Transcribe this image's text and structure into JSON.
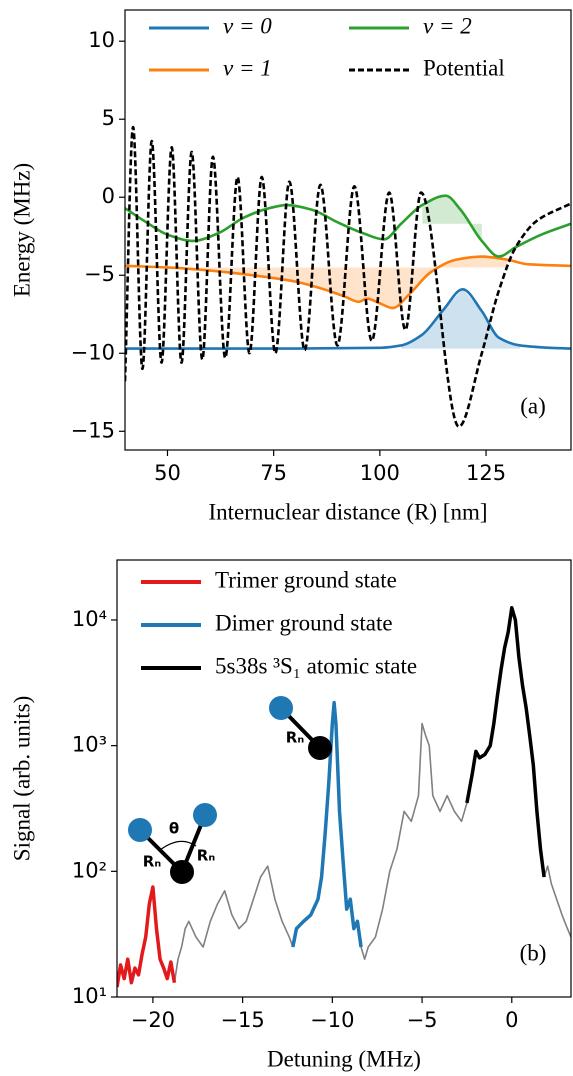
{
  "chart_data": [
    {
      "type": "line",
      "xlabel": "Internuclear distance (R) [nm]",
      "ylabel": "Energy (MHz)",
      "panel_label": "(a)",
      "xlim": [
        40,
        145
      ],
      "xticks": [
        50,
        75,
        100,
        125
      ],
      "ylim": [
        -16.2,
        12
      ],
      "yticks": [
        10,
        5,
        0,
        {
          "value": -5,
          "label": "−5"
        },
        {
          "value": -10,
          "label": "−10"
        },
        {
          "value": -15,
          "label": "−15"
        }
      ],
      "smooth": true,
      "legend": "upper left",
      "legend_ncol": 2,
      "series": [
        {
          "name": "ν = 0",
          "color": "#1f77b4",
          "x": [
            40,
            60,
            80,
            100,
            105,
            110,
            115,
            119.5,
            124,
            128,
            133,
            140,
            145
          ],
          "values": [
            -9.7,
            -9.7,
            -9.7,
            -9.65,
            -9.5,
            -8.8,
            -7.2,
            -5.9,
            -7.3,
            -9.0,
            -9.5,
            -9.65,
            -9.7
          ],
          "fill": {
            "level": -9.7,
            "xrange": [
              104,
              135
            ]
          }
        },
        {
          "name": "ν = 1",
          "color": "#ff7f0e",
          "x": [
            40,
            50,
            60,
            70,
            80,
            88,
            92,
            95,
            97,
            100,
            103,
            107,
            112,
            118,
            124,
            130,
            135,
            145
          ],
          "values": [
            -4.4,
            -4.5,
            -4.7,
            -5.0,
            -5.4,
            -6.0,
            -6.4,
            -6.7,
            -6.5,
            -6.8,
            -7.1,
            -6.2,
            -4.8,
            -4.0,
            -3.8,
            -4.0,
            -4.3,
            -4.4
          ],
          "fill": {
            "level": -4.5,
            "xrange": [
              42,
              130
            ]
          }
        },
        {
          "name": "ν = 2",
          "color": "#2ca02c",
          "x": [
            40,
            45,
            50,
            56,
            62,
            68,
            74,
            78,
            84,
            90,
            96,
            101,
            105,
            110,
            115.5,
            119,
            124,
            128,
            132,
            138,
            145
          ],
          "values": [
            -0.7,
            -1.6,
            -2.4,
            -2.8,
            -2.3,
            -1.3,
            -0.7,
            -0.5,
            -0.8,
            -1.6,
            -2.3,
            -2.7,
            -1.7,
            -0.5,
            0.1,
            -0.8,
            -2.8,
            -3.8,
            -3.2,
            -2.4,
            -1.7
          ],
          "fill": {
            "level": -1.7,
            "xrange": [
              106,
              127
            ]
          }
        },
        {
          "name": "Potential",
          "color": "#000000",
          "linestyle": "dashed",
          "x": [
            40,
            41.9,
            44.1,
            46.3,
            48.6,
            51.0,
            53.3,
            55.7,
            58.2,
            60.7,
            63.6,
            66.5,
            69.3,
            72.2,
            75.4,
            78.7,
            82.3,
            86.0,
            90.0,
            94.0,
            98.1,
            102.2,
            106.0,
            109.7,
            118.6,
            124,
            128,
            132,
            137,
            145
          ],
          "values": [
            -11.8,
            4.5,
            -11.0,
            3.6,
            -10.6,
            3.2,
            -10.6,
            2.9,
            -10.4,
            2.6,
            -10.3,
            1.3,
            -10.0,
            1.3,
            -10.0,
            1.0,
            -9.8,
            0.8,
            -9.5,
            0.7,
            -9.2,
            0.3,
            -8.5,
            0.3,
            -14.7,
            -10,
            -6,
            -3.2,
            -1.5,
            -0.4
          ]
        }
      ]
    },
    {
      "type": "line",
      "xlabel": "Detuning (MHz)",
      "ylabel": "Signal (arb. units)",
      "panel_label": "(b)",
      "xlim": [
        -22,
        3.3
      ],
      "xticks": [
        {
          "value": -20,
          "label": "−20"
        },
        {
          "value": -15,
          "label": "−15"
        },
        {
          "value": -10,
          "label": "−10"
        },
        {
          "value": -5,
          "label": "−5"
        },
        0
      ],
      "ylim": [
        10,
        30000
      ],
      "yscale": "log",
      "yticks": [
        {
          "value": 10,
          "label": "10¹"
        },
        {
          "value": 100,
          "label": "10²"
        },
        {
          "value": 1000,
          "label": "10³"
        },
        {
          "value": 10000,
          "label": "10⁴"
        }
      ],
      "legend": "upper left",
      "legend_ncol": 1,
      "annotations": [
        "θ",
        "Rₙ",
        "Rₙ",
        "Rₙ"
      ],
      "series": [
        {
          "color": "#808080",
          "x": [
            -18.8,
            -18.6,
            -18.4,
            -18.2,
            -18.0,
            -17.6,
            -17.2,
            -16.8,
            -16.4,
            -16.0,
            -15.6,
            -15.2,
            -14.8,
            -14.4,
            -14.0,
            -13.6,
            -13.2,
            -12.8,
            -12.4,
            -12.2,
            -10.0,
            -8.4,
            -8.2,
            -8.0,
            -7.6,
            -7.2,
            -6.8,
            -6.4,
            -6.0,
            -5.6,
            -5.2,
            -5.0,
            -4.8,
            -4.6,
            -4.4,
            -4.0,
            -3.6,
            -3.2,
            -2.8,
            -2.5,
            0,
            1.8,
            2.0,
            2.2,
            2.5,
            2.8,
            3.1,
            3.3
          ],
          "values": [
            13,
            20,
            25,
            35,
            40,
            30,
            25,
            40,
            55,
            70,
            45,
            35,
            40,
            60,
            90,
            110,
            60,
            40,
            30,
            25,
            null,
            25,
            20,
            25,
            30,
            50,
            100,
            150,
            300,
            250,
            400,
            1500,
            1200,
            1000,
            400,
            300,
            400,
            300,
            250,
            350,
            null,
            90,
            110,
            80,
            60,
            45,
            35,
            30
          ]
        },
        {
          "name": "Trimer ground state",
          "color": "#e31a1c",
          "x": [
            -22,
            -21.8,
            -21.6,
            -21.4,
            -21.2,
            -21.0,
            -20.8,
            -20.6,
            -20.4,
            -20.2,
            -20.0,
            -19.8,
            -19.6,
            -19.4,
            -19.2,
            -19.0,
            -18.8
          ],
          "values": [
            12,
            18,
            14,
            20,
            13,
            17,
            15,
            22,
            30,
            55,
            75,
            35,
            20,
            17,
            14,
            19,
            13
          ]
        },
        {
          "name": "Dimer ground state",
          "color": "#1f77b4",
          "x": [
            -12.2,
            -12.0,
            -11.6,
            -11.2,
            -10.8,
            -10.6,
            -10.4,
            -10.2,
            -10.0,
            -9.9,
            -9.8,
            -9.6,
            -9.4,
            -9.2,
            -9.0,
            -8.8,
            -8.6,
            -8.4
          ],
          "values": [
            25,
            35,
            40,
            45,
            60,
            90,
            200,
            500,
            1500,
            2200,
            1500,
            300,
            120,
            50,
            60,
            35,
            40,
            25
          ]
        },
        {
          "name": "5s38s ³S₁ atomic state",
          "color": "#000000",
          "x": [
            -2.5,
            -2.2,
            -2.0,
            -1.8,
            -1.5,
            -1.2,
            -1.0,
            -0.8,
            -0.6,
            -0.4,
            -0.2,
            0,
            0.2,
            0.4,
            0.6,
            0.8,
            1.0,
            1.2,
            1.4,
            1.6,
            1.8
          ],
          "values": [
            350,
            600,
            900,
            800,
            850,
            1000,
            1500,
            2500,
            4000,
            6000,
            8000,
            12500,
            10000,
            5000,
            3000,
            2000,
            1200,
            700,
            300,
            150,
            90
          ]
        }
      ]
    }
  ]
}
